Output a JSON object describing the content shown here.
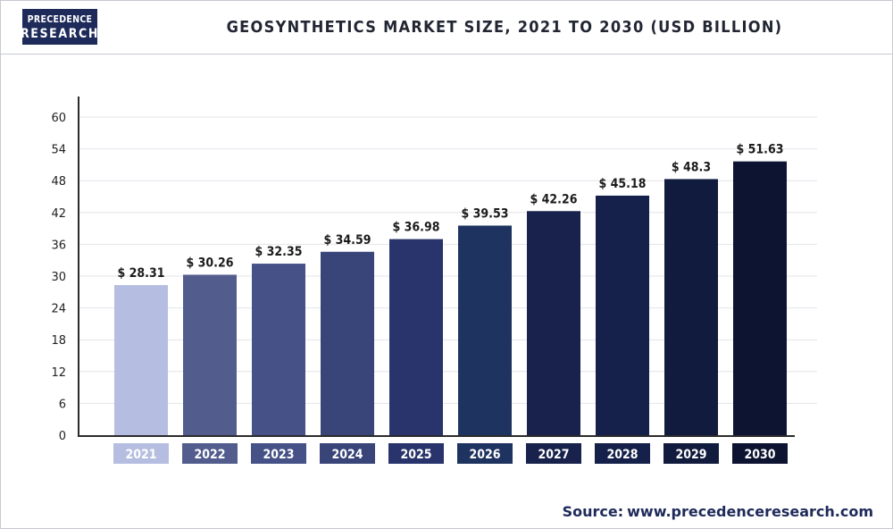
{
  "header": {
    "logo_line1": "PRECEDENCE",
    "logo_line2": "RESEARCH",
    "title": "GEOSYNTHETICS MARKET SIZE, 2021 TO 2030 (USD BILLION)"
  },
  "footer": {
    "source_label": "Source:",
    "source_url": "www.precedenceresearch.com"
  },
  "chart_data": {
    "type": "bar",
    "title": "GEOSYNTHETICS MARKET SIZE, 2021 TO 2030 (USD BILLION)",
    "categories": [
      "2021",
      "2022",
      "2023",
      "2024",
      "2025",
      "2026",
      "2027",
      "2028",
      "2029",
      "2030"
    ],
    "values": [
      28.31,
      30.26,
      32.35,
      34.59,
      36.98,
      39.53,
      42.26,
      45.18,
      48.3,
      51.63
    ],
    "value_labels": [
      "$ 28.31",
      "$ 30.26",
      "$ 32.35",
      "$ 34.59",
      "$ 36.98",
      "$ 39.53",
      "$ 42.26",
      "$ 45.18",
      "$ 48.3",
      "$ 51.63"
    ],
    "bar_colors": [
      "#b5bee0",
      "#525d8e",
      "#465287",
      "#394579",
      "#28346b",
      "#1f3360",
      "#18224c",
      "#15214a",
      "#111b3e",
      "#0c1431"
    ],
    "yticks": [
      0,
      6,
      12,
      18,
      24,
      30,
      36,
      42,
      48,
      54,
      60
    ],
    "ylim": [
      0,
      60
    ],
    "xlabel": "",
    "ylabel": "",
    "grid": true,
    "legend": "none"
  }
}
